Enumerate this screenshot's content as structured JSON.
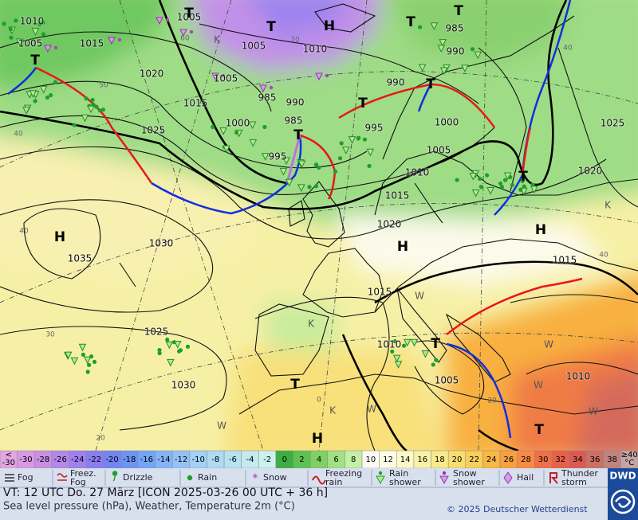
{
  "map": {
    "pressure_labels": [
      1010,
      1005,
      1005,
      1015,
      1005,
      1010,
      985,
      990,
      1020,
      1005,
      990,
      1015,
      985,
      990,
      1000,
      985,
      995,
      1000,
      1025,
      1005,
      995,
      1010,
      1025,
      1020,
      1015,
      1020,
      1035,
      1030,
      1015,
      1015,
      1025,
      1010,
      1005,
      1010,
      1030
    ],
    "centers": [
      "H",
      "H",
      "H",
      "H",
      "H",
      "T",
      "T",
      "T",
      "T",
      "T",
      "T",
      "T",
      "T",
      "T",
      "T",
      "T",
      "T"
    ],
    "marks": [
      "K",
      "K",
      "K",
      "K",
      "W",
      "W",
      "W",
      "W",
      "W",
      "W"
    ],
    "temperature_labels": [
      60,
      70,
      50,
      40,
      40,
      30,
      20,
      0,
      20,
      40,
      40
    ]
  },
  "scale": {
    "cells": [
      {
        "label": [
          "<",
          -30
        ],
        "color": "#e2a6e2"
      },
      {
        "label": [
          -30
        ],
        "color": "#d898e6"
      },
      {
        "label": [
          -28
        ],
        "color": "#c890e4"
      },
      {
        "label": [
          -26
        ],
        "color": "#b488ea"
      },
      {
        "label": [
          -24
        ],
        "color": "#a080f0"
      },
      {
        "label": [
          -22
        ],
        "color": "#8a7cf2"
      },
      {
        "label": [
          -20
        ],
        "color": "#7484f2"
      },
      {
        "label": [
          -18
        ],
        "color": "#6c94f4"
      },
      {
        "label": [
          -16
        ],
        "color": "#74a4f8"
      },
      {
        "label": [
          -14
        ],
        "color": "#84b4f8"
      },
      {
        "label": [
          -12
        ],
        "color": "#94c2f8"
      },
      {
        "label": [
          -10
        ],
        "color": "#a2d0f6"
      },
      {
        "label": [
          -8
        ],
        "color": "#aedaf2"
      },
      {
        "label": [
          -6
        ],
        "color": "#b8e2f0"
      },
      {
        "label": [
          -4
        ],
        "color": "#c4eaf0"
      },
      {
        "label": [
          -2
        ],
        "color": "#ccf2ee"
      },
      {
        "label": [
          0
        ],
        "color": "#3eae44"
      },
      {
        "label": [
          2
        ],
        "color": "#5ec050"
      },
      {
        "label": [
          4
        ],
        "color": "#80d064"
      },
      {
        "label": [
          6
        ],
        "color": "#a2e084"
      },
      {
        "label": [
          8
        ],
        "color": "#c4f0a6"
      },
      {
        "label": [
          10
        ],
        "color": "#fbfbf4"
      },
      {
        "label": [
          12
        ],
        "color": "#fdfde6"
      },
      {
        "label": [
          14
        ],
        "color": "#fcf8c8"
      },
      {
        "label": [
          16
        ],
        "color": "#f8f2a8"
      },
      {
        "label": [
          18
        ],
        "color": "#f8ea8c"
      },
      {
        "label": [
          20
        ],
        "color": "#f8de70"
      },
      {
        "label": [
          22
        ],
        "color": "#f8ce5c"
      },
      {
        "label": [
          24
        ],
        "color": "#f8b844"
      },
      {
        "label": [
          26
        ],
        "color": "#f8a040"
      },
      {
        "label": [
          28
        ],
        "color": "#f88a42"
      },
      {
        "label": [
          30
        ],
        "color": "#f07044"
      },
      {
        "label": [
          32
        ],
        "color": "#e86048"
      },
      {
        "label": [
          34
        ],
        "color": "#dc5a54"
      },
      {
        "label": [
          36
        ],
        "color": "#cc7064"
      },
      {
        "label": [
          38
        ],
        "color": "#c08480"
      },
      {
        "label": [
          "≥40",
          "°C"
        ],
        "color": "#c4a4a4"
      }
    ]
  },
  "legend": {
    "items": [
      {
        "label": [
          "Fog"
        ]
      },
      {
        "label": [
          "Freez.",
          "Fog"
        ]
      },
      {
        "label": [
          "Drizzle"
        ]
      },
      {
        "label": [
          "Rain"
        ]
      },
      {
        "label": [
          "Snow"
        ]
      },
      {
        "label": [
          "Freezing",
          "rain"
        ]
      },
      {
        "label": [
          "Rain",
          "shower"
        ]
      },
      {
        "label": [
          "Snow",
          "shower"
        ]
      },
      {
        "label": [
          "Hail"
        ]
      },
      {
        "label": [
          "Thunder",
          "storm"
        ]
      }
    ]
  },
  "footer": {
    "valid_time": "VT: 12 UTC Do.  27 März [ICON 2025-03-26  00 UTC + 36 h]",
    "description": "Sea level pressure (hPa), Weather, Temperature 2m (°C)",
    "copyright": "© 2025 Deutscher Wetterdienst",
    "logo": "DWD"
  }
}
